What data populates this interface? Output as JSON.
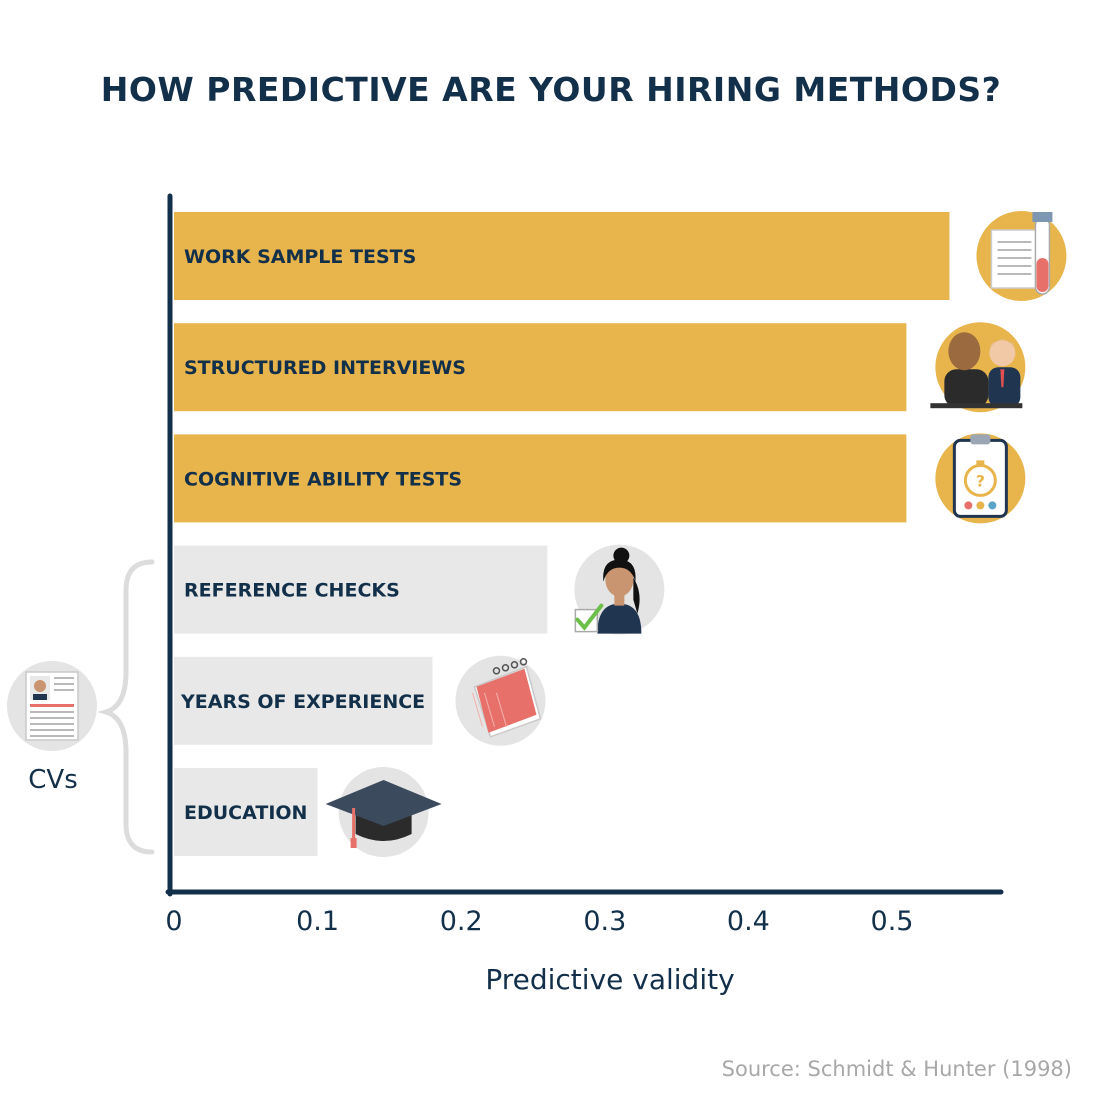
{
  "title": "HOW PREDICTIVE ARE YOUR HIRING METHODS?",
  "chart_data": {
    "type": "bar",
    "orientation": "horizontal",
    "categories": [
      "WORK SAMPLE TESTS",
      "STRUCTURED INTERVIEWS",
      "COGNITIVE ABILITY TESTS",
      "REFERENCE CHECKS",
      "YEARS OF EXPERIENCE",
      "EDUCATION"
    ],
    "values": [
      0.54,
      0.51,
      0.51,
      0.26,
      0.18,
      0.1
    ],
    "highlighted": [
      true,
      true,
      true,
      false,
      false,
      false
    ],
    "icons": [
      "document-test-tube-icon",
      "interview-people-icon",
      "clipboard-stopwatch-icon",
      "woman-checkmark-icon",
      "calendar-icon",
      "graduation-cap-icon"
    ],
    "xlabel": "Predictive validity",
    "xticks": [
      "0",
      "0.1",
      "0.2",
      "0.3",
      "0.4",
      "0.5"
    ],
    "xlim": [
      0,
      0.57
    ],
    "grid": false,
    "group": {
      "label": "CVs",
      "icon": "cv-resume-icon",
      "members": [
        "REFERENCE CHECKS",
        "YEARS OF EXPERIENCE",
        "EDUCATION"
      ]
    }
  },
  "source": "Source: Schmidt & Hunter (1998)",
  "colors": {
    "highlight": "#E8B54D",
    "muted": "#E8E8E8",
    "text": "#13304A",
    "axis": "#13304A",
    "brace": "#DCDCDC",
    "icon_bg": "#E4E4E4",
    "source_text": "#A8A8A8"
  }
}
